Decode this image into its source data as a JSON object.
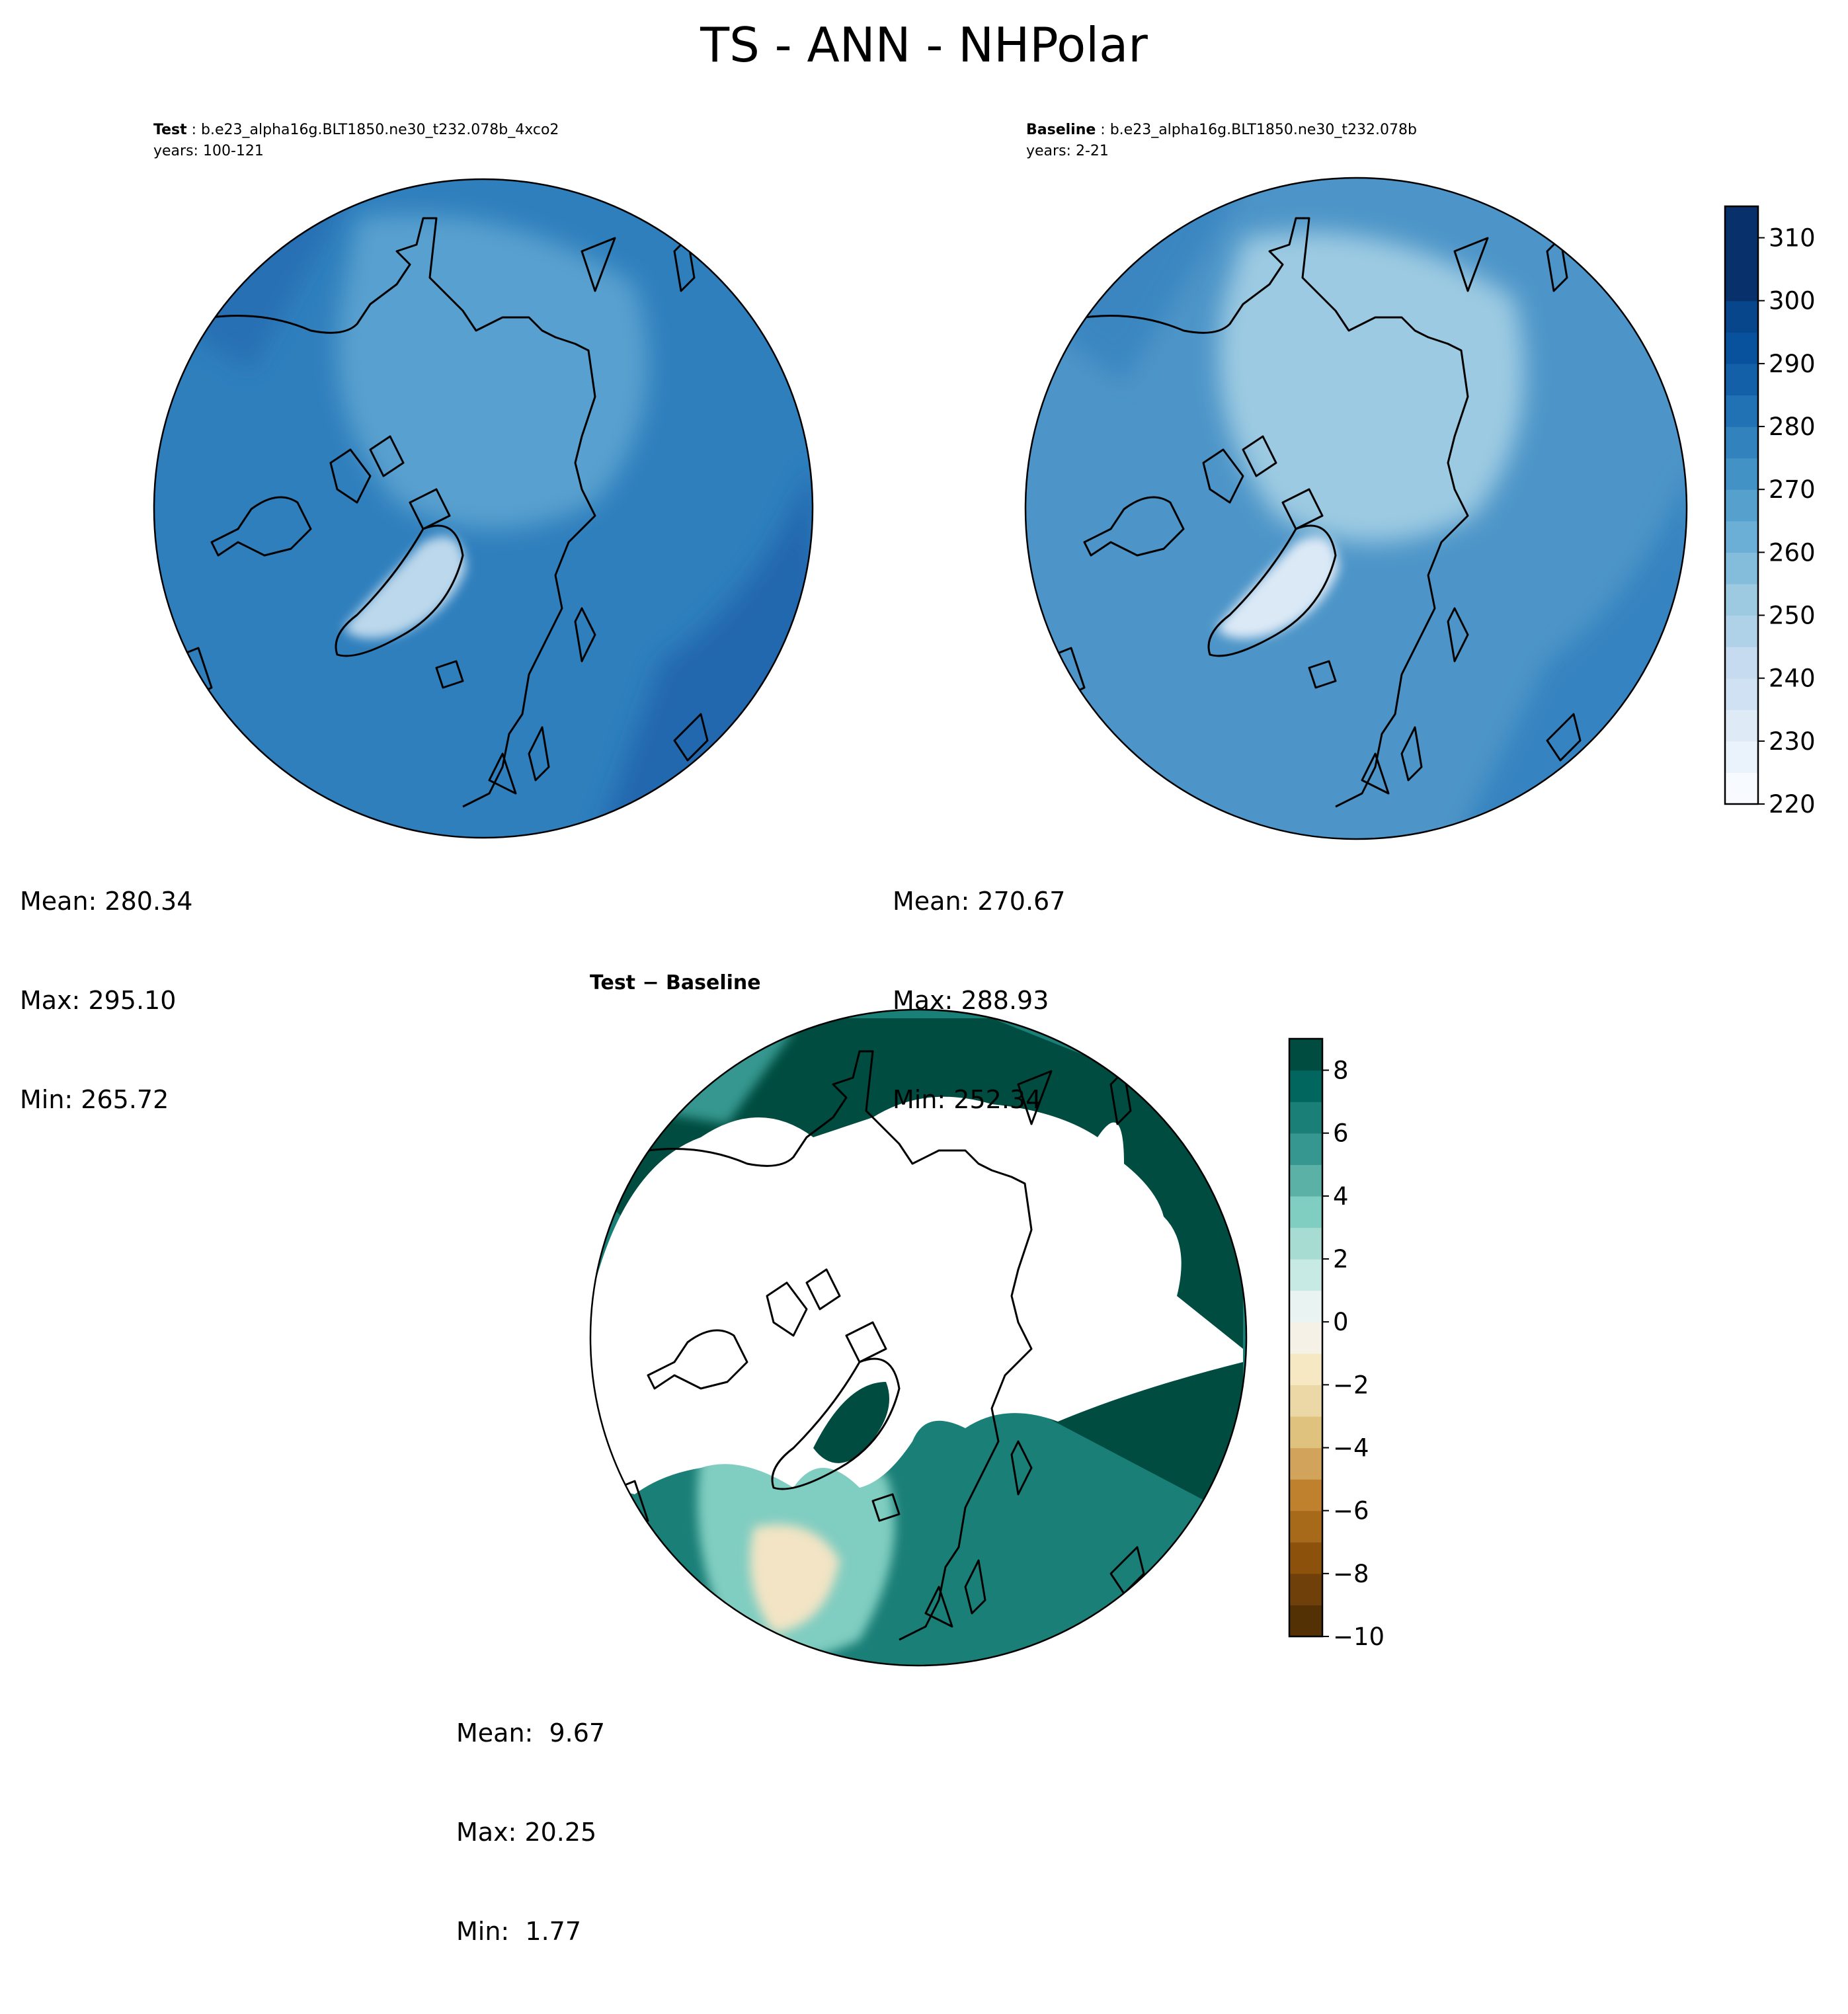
{
  "title": "TS - ANN - NHPolar",
  "panels": {
    "test": {
      "label": "Test",
      "case": "b.e23_alpha16g.BLT1850.ne30_t232.078b_4xco2",
      "years": "years: 100-121",
      "mean": "Mean: 280.34",
      "max": "Max: 295.10",
      "min": "Min: 265.72"
    },
    "baseline": {
      "label": "Baseline",
      "case": "b.e23_alpha16g.BLT1850.ne30_t232.078b",
      "years": "years: 2-21",
      "mean": "Mean: 270.67",
      "max": "Max: 288.93",
      "min": "Min: 252.34"
    },
    "diff": {
      "label": "Test − Baseline",
      "mean": "Mean:  9.67",
      "max": "Max: 20.25",
      "min": "Min:  1.77"
    }
  },
  "colorbars": {
    "main": {
      "min": 220,
      "max": 315,
      "step": 5,
      "ticks": [
        "220",
        "230",
        "240",
        "250",
        "260",
        "270",
        "280",
        "290",
        "300",
        "310"
      ],
      "tick_values": [
        220,
        230,
        240,
        250,
        260,
        270,
        280,
        290,
        300,
        310
      ],
      "colors": [
        "#f7fbff",
        "#eaf3fb",
        "#deebf7",
        "#cfe1f2",
        "#c6dbef",
        "#b0d2e8",
        "#9ecae1",
        "#84bcdb",
        "#6baed6",
        "#56a0ce",
        "#4292c6",
        "#3282be",
        "#2171b5",
        "#1460a8",
        "#08519c",
        "#08468b",
        "#08306b",
        "#08306b",
        "#08306b"
      ]
    },
    "diff": {
      "min": -10,
      "max": 9,
      "step": 1,
      "ticks": [
        "−10",
        "−8",
        "−6",
        "−4",
        "−2",
        "0",
        "2",
        "4",
        "6",
        "8"
      ],
      "tick_values": [
        -10,
        -8,
        -6,
        -4,
        -2,
        0,
        2,
        4,
        6,
        8
      ],
      "colors": [
        "#543005",
        "#6f4009",
        "#8c510a",
        "#a76a1b",
        "#bf812d",
        "#d2a45b",
        "#dfc27d",
        "#ebd8a6",
        "#f6e8c3",
        "#f5f1e6",
        "#e9f4f2",
        "#c7eae5",
        "#a6dcd2",
        "#80cdc1",
        "#5bb1a6",
        "#35978f",
        "#1a7f77",
        "#01665e",
        "#004c40"
      ]
    }
  },
  "colors": {
    "ocean_test": "#2f7fbd",
    "ocean_base": "#4d95c8",
    "arctic_test": "#58a0cf",
    "arctic_base": "#9ccae2",
    "greenland_test": "#bcd8ec",
    "greenland_base": "#dbe9f6",
    "diff_high": "#004c40",
    "diff_mid": "#1a7f77",
    "diff_low": "#80cdc1",
    "diff_min": "#f2e4c4",
    "coast": "#000000"
  }
}
